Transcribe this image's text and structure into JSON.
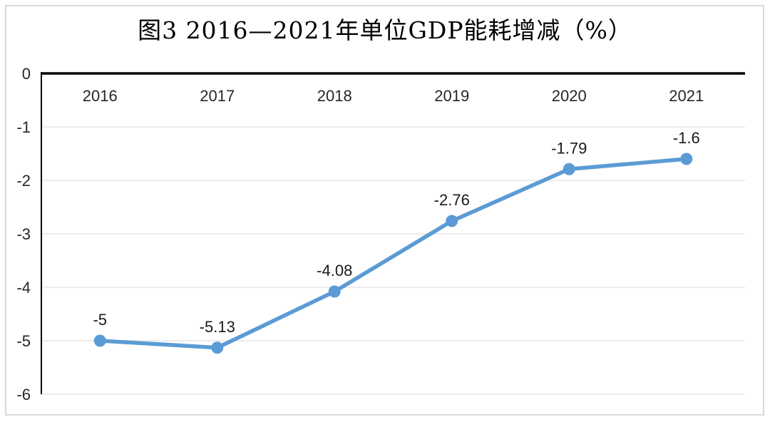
{
  "chart_data": {
    "type": "line",
    "title": "图3 2016—2021年单位GDP能耗增减（%）",
    "categories": [
      "2016",
      "2017",
      "2018",
      "2019",
      "2020",
      "2021"
    ],
    "series": [
      {
        "name": "单位GDP能耗增减",
        "values": [
          -5,
          -5.13,
          -4.08,
          -2.76,
          -1.79,
          -1.6
        ],
        "labels": [
          "-5",
          "-5.13",
          "-4.08",
          "-2.76",
          "-1.79",
          "-1.6"
        ]
      }
    ],
    "xlabel": "",
    "ylabel": "",
    "ylim": [
      -6,
      0
    ],
    "yticks": [
      0,
      -1,
      -2,
      -3,
      -4,
      -5,
      -6
    ],
    "grid": true,
    "legend_position": "none",
    "colors": {
      "line": "#5b9bd5",
      "marker": "#5b9bd5",
      "axis": "#000000",
      "gridline": "#ececec",
      "tick_text": "#262626",
      "label_text": "#1a1a1a"
    }
  }
}
